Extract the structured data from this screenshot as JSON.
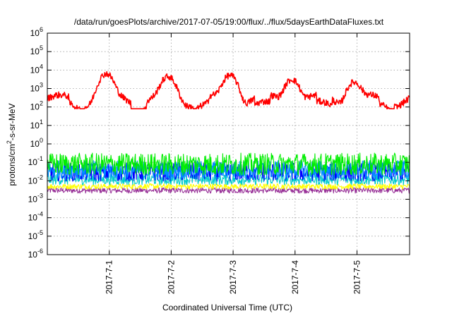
{
  "chart_data": {
    "type": "line",
    "title": "/data/run/goesPlots/archive/2017-07-05/19:00/flux/../flux/5daysEarthDataFluxes.txt",
    "xlabel": "Coordinated Universal Time (UTC)",
    "ylabel_base": "protons/cm",
    "ylabel_sup": "2",
    "ylabel_rest": "-s-sr-MeV",
    "y_scale": "log",
    "ylim": [
      1e-06,
      1000000.0
    ],
    "y_ticks": [
      {
        "exp": "-6"
      },
      {
        "exp": "-5"
      },
      {
        "exp": "-4"
      },
      {
        "exp": "-3"
      },
      {
        "exp": "-2"
      },
      {
        "exp": "-1"
      },
      {
        "exp": "0"
      },
      {
        "exp": "1"
      },
      {
        "exp": "2"
      },
      {
        "exp": "3"
      },
      {
        "exp": "4"
      },
      {
        "exp": "5"
      },
      {
        "exp": "6"
      }
    ],
    "y_tick_base": "10",
    "xlim_days": [
      0,
      5.85
    ],
    "x_ticks": [
      {
        "label": "2017-7-1",
        "day": 1
      },
      {
        "label": "2017-7-2",
        "day": 2
      },
      {
        "label": "2017-7-3",
        "day": 3
      },
      {
        "label": "2017-7-4",
        "day": 4
      },
      {
        "label": "2017-7-5",
        "day": 5
      }
    ],
    "grid": true,
    "series": [
      {
        "color": "#ff0000",
        "style": "diurnal",
        "baseline": 500,
        "peak_days": [
          0.95,
          1.95,
          2.95,
          3.95,
          4.95
        ],
        "peak_values": [
          6000,
          4000,
          5000,
          3000,
          2000
        ],
        "low": 100
      },
      {
        "color": "#00ee00",
        "style": "noise",
        "level": 0.08,
        "spread": 0.6
      },
      {
        "color": "#0090ff",
        "style": "noise",
        "level": 0.04,
        "spread": 0.5
      },
      {
        "color": "#0000ff",
        "style": "noise",
        "level": 0.03,
        "spread": 0.5
      },
      {
        "color": "#00cccc",
        "style": "noise",
        "level": 0.012,
        "spread": 0.3
      },
      {
        "color": "#ffff00",
        "style": "noise",
        "level": 0.005,
        "spread": 0.15
      },
      {
        "color": "#993399",
        "style": "noise",
        "level": 0.003,
        "spread": 0.15
      }
    ]
  }
}
